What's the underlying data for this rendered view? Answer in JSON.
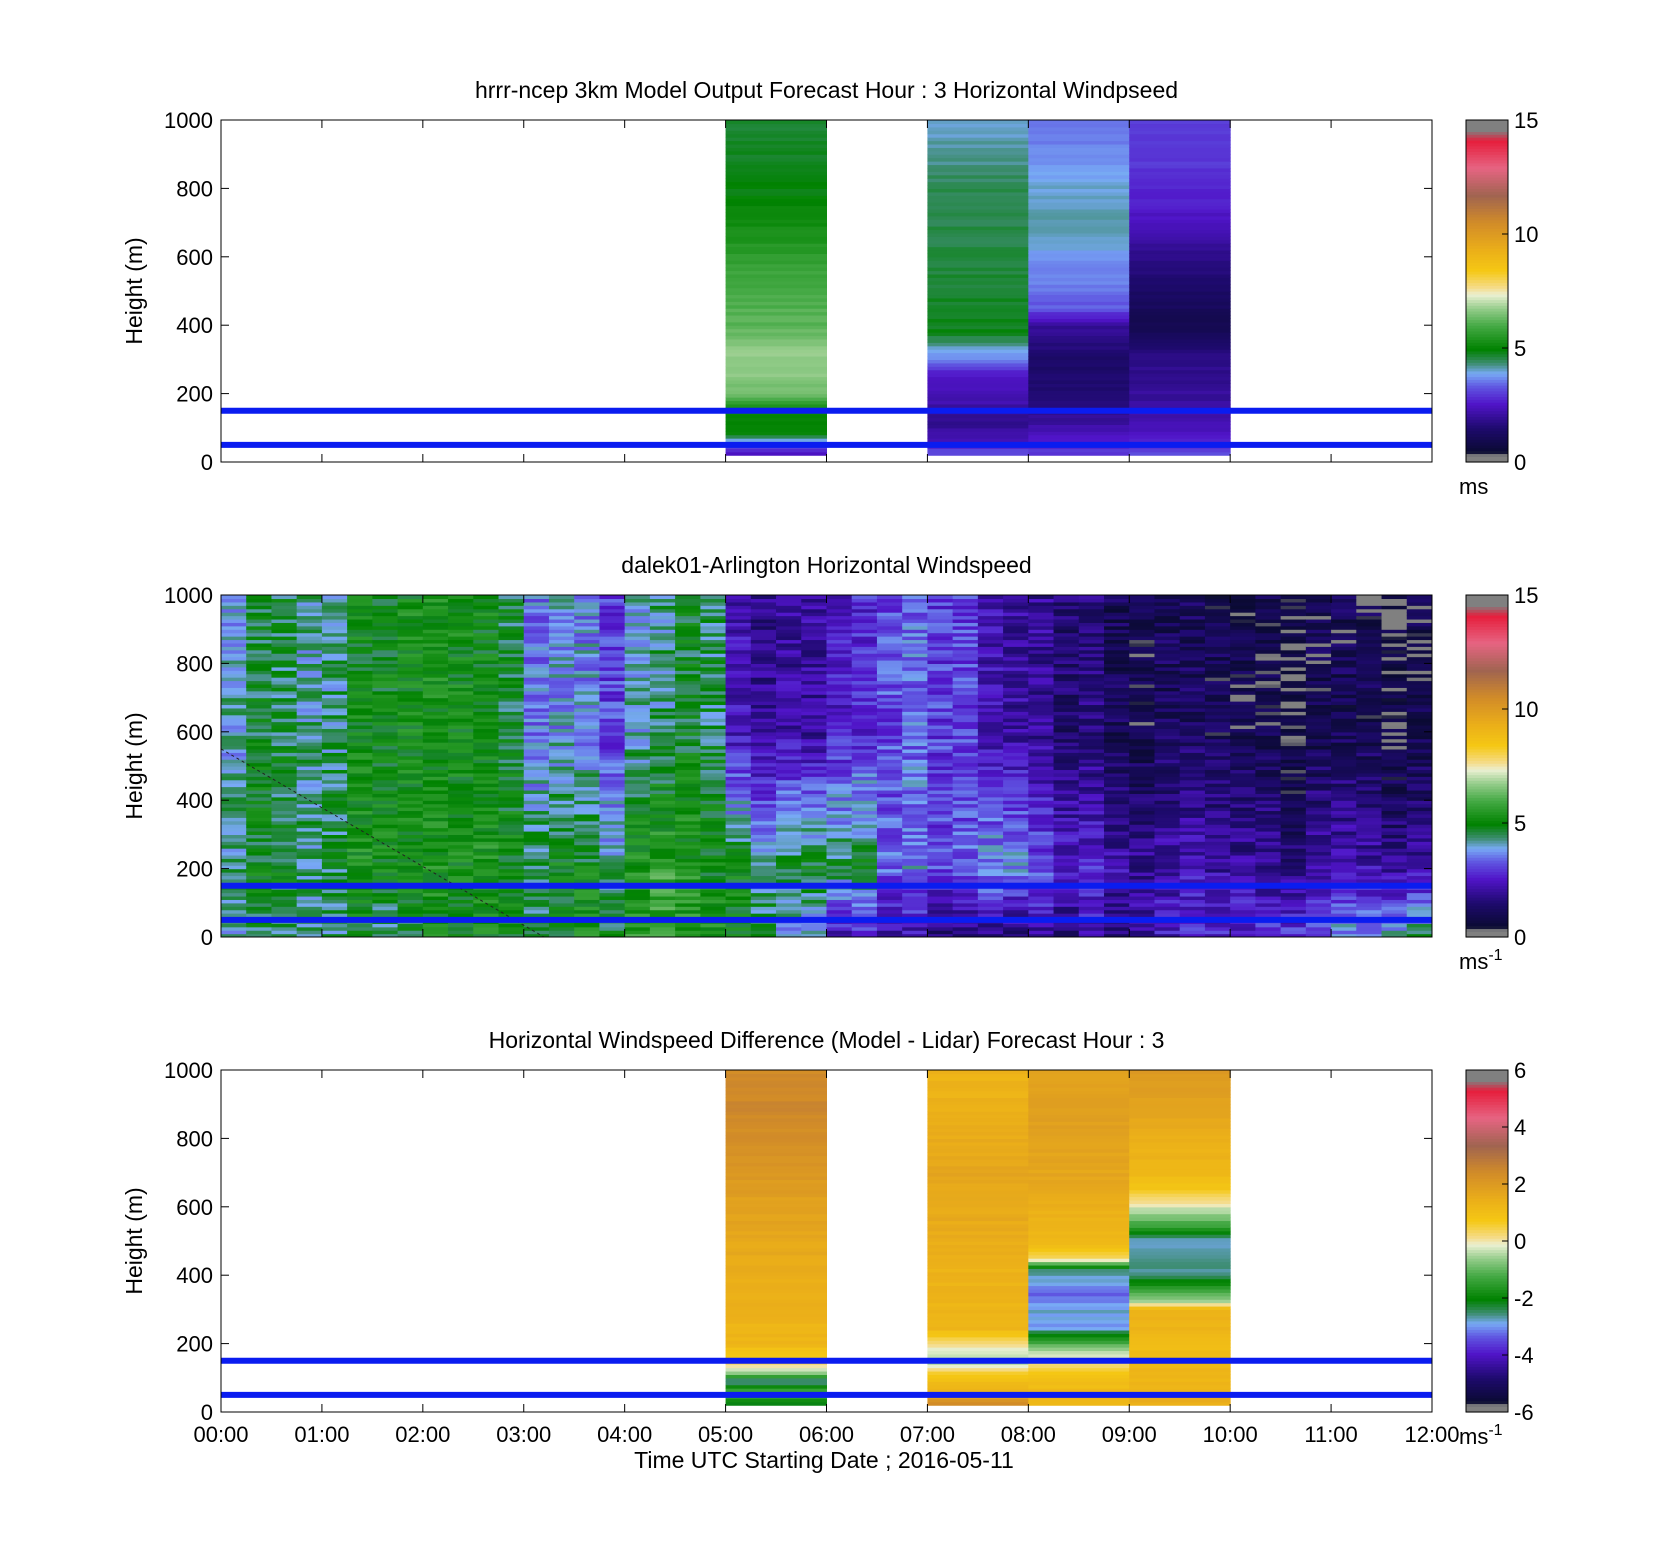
{
  "figure": {
    "xlabel": "Time UTC  Starting Date ; 2016-05-11",
    "x_ticks": [
      "00:00",
      "01:00",
      "02:00",
      "03:00",
      "04:00",
      "05:00",
      "06:00",
      "07:00",
      "08:00",
      "09:00",
      "10:00",
      "11:00",
      "12:00"
    ]
  },
  "chart_data": [
    {
      "type": "heatmap",
      "title": "hrrr-ncep 3km Model Output   Forecast Hour : 3 Horizontal Windpseed",
      "ylabel": "Height (m)",
      "xlim": [
        0,
        12
      ],
      "ylim": [
        0,
        1000
      ],
      "y_ticks": [
        0,
        200,
        400,
        600,
        800,
        1000
      ],
      "reference_lines_m": [
        50,
        150
      ],
      "colorbar": {
        "label": "ms",
        "label_sup": "",
        "ticks": [
          0,
          5,
          10,
          15
        ],
        "range": [
          0,
          15
        ]
      },
      "columns": [
        {
          "x_start": 5,
          "x_end": 6,
          "profile": [
            [
              25,
              2.6
            ],
            [
              60,
              3.5
            ],
            [
              80,
              5
            ],
            [
              150,
              5
            ],
            [
              200,
              6.4
            ],
            [
              300,
              6.8
            ],
            [
              400,
              6.2
            ],
            [
              550,
              5.9
            ],
            [
              650,
              5.4
            ],
            [
              750,
              5.0
            ],
            [
              850,
              4.8
            ],
            [
              1000,
              4.6
            ]
          ]
        },
        {
          "x_start": 7,
          "x_end": 8,
          "profile": [
            [
              25,
              3.2
            ],
            [
              60,
              2.5
            ],
            [
              120,
              1.8
            ],
            [
              200,
              2.4
            ],
            [
              260,
              2.6
            ],
            [
              300,
              3.6
            ],
            [
              380,
              4.8
            ],
            [
              600,
              4.6
            ],
            [
              800,
              4.5
            ],
            [
              900,
              4.2
            ],
            [
              1000,
              4.0
            ]
          ]
        },
        {
          "x_start": 8,
          "x_end": 9,
          "profile": [
            [
              25,
              3.0
            ],
            [
              60,
              2.6
            ],
            [
              120,
              2.0
            ],
            [
              200,
              1.5
            ],
            [
              300,
              1.4
            ],
            [
              400,
              2.0
            ],
            [
              450,
              3.3
            ],
            [
              500,
              3.5
            ],
            [
              600,
              3.8
            ],
            [
              700,
              4.2
            ],
            [
              800,
              4.0
            ],
            [
              900,
              3.7
            ],
            [
              1000,
              3.4
            ]
          ]
        },
        {
          "x_start": 9,
          "x_end": 10,
          "profile": [
            [
              25,
              3.2
            ],
            [
              60,
              2.8
            ],
            [
              120,
              2.2
            ],
            [
              200,
              2.0
            ],
            [
              300,
              1.8
            ],
            [
              400,
              1.0
            ],
            [
              500,
              1.3
            ],
            [
              600,
              1.8
            ],
            [
              700,
              2.4
            ],
            [
              800,
              2.8
            ],
            [
              900,
              3.0
            ],
            [
              1000,
              3.1
            ]
          ]
        }
      ]
    },
    {
      "type": "heatmap",
      "title": "dalek01-Arlington  Horizontal Windspeed",
      "ylabel": "Height (m)",
      "xlim": [
        0,
        12
      ],
      "ylim": [
        0,
        1000
      ],
      "y_ticks": [
        0,
        200,
        400,
        600,
        800,
        1000
      ],
      "reference_lines_m": [
        50,
        150
      ],
      "colorbar": {
        "label": "ms",
        "label_sup": "-1",
        "ticks": [
          0,
          5,
          10,
          15
        ],
        "range": [
          0,
          15
        ]
      },
      "approximate_hourly_speed_ms": {
        "hours": [
          0.25,
          0.75,
          1.25,
          1.75,
          2.25,
          2.75,
          3.25,
          3.75,
          4.25,
          4.75,
          5.25,
          5.75,
          6.25,
          6.75,
          7.25,
          7.75,
          8.25,
          8.75,
          9.25,
          9.75,
          10.25,
          10.75,
          11.25,
          11.75
        ],
        "low_levels_0_200m": [
          4.2,
          4.5,
          4.6,
          4.4,
          4.8,
          4.9,
          4.7,
          5.2,
          5.8,
          5.4,
          4.8,
          3.8,
          2.2,
          2.0,
          1.6,
          1.5,
          1.8,
          2.0,
          2.4,
          2.6,
          2.8,
          3.2,
          3.6,
          4.4
        ],
        "mid_levels_200_600m": [
          4.6,
          4.8,
          5.0,
          5.1,
          5.0,
          5.3,
          4.8,
          4.6,
          5.6,
          5.2,
          4.8,
          4.7,
          4.4,
          3.4,
          3.2,
          3.6,
          2.8,
          2.4,
          2.2,
          2.0,
          2.0,
          1.9,
          2.0,
          2.0
        ],
        "upper_levels_600_1000m": [
          4.4,
          4.6,
          4.7,
          5.0,
          4.9,
          4.9,
          3.6,
          3.4,
          4.2,
          4.6,
          2.2,
          2.0,
          2.4,
          3.2,
          3.0,
          2.0,
          1.6,
          1.3,
          1.1,
          0.9,
          0.8,
          0.7,
          0.8,
          0.8
        ]
      }
    },
    {
      "type": "heatmap",
      "title": "Horizontal Windspeed Difference (Model - Lidar) Forecast Hour : 3",
      "ylabel": "Height (m)",
      "xlim": [
        0,
        12
      ],
      "ylim": [
        0,
        1000
      ],
      "y_ticks": [
        0,
        200,
        400,
        600,
        800,
        1000
      ],
      "reference_lines_m": [
        50,
        150
      ],
      "colorbar": {
        "label": "ms",
        "label_sup": "-1",
        "ticks": [
          -6,
          -4,
          -2,
          0,
          2,
          4,
          6
        ],
        "range": [
          -6,
          6
        ]
      },
      "columns": [
        {
          "x_start": 5,
          "x_end": 6,
          "profile": [
            [
              25,
              -2.0
            ],
            [
              60,
              -1.2
            ],
            [
              90,
              -2.8
            ],
            [
              120,
              -0.3
            ],
            [
              150,
              0.4
            ],
            [
              200,
              1.2
            ],
            [
              400,
              1.5
            ],
            [
              600,
              1.8
            ],
            [
              800,
              2.3
            ],
            [
              900,
              2.5
            ],
            [
              1000,
              2.4
            ]
          ]
        },
        {
          "x_start": 7,
          "x_end": 8,
          "profile": [
            [
              25,
              2.4
            ],
            [
              60,
              1.5
            ],
            [
              120,
              0.4
            ],
            [
              150,
              -0.6
            ],
            [
              200,
              0.2
            ],
            [
              250,
              1.3
            ],
            [
              400,
              1.3
            ],
            [
              500,
              1.5
            ],
            [
              700,
              1.7
            ],
            [
              900,
              1.4
            ],
            [
              1000,
              1.3
            ]
          ]
        },
        {
          "x_start": 8,
          "x_end": 9,
          "profile": [
            [
              25,
              1.3
            ],
            [
              100,
              1.0
            ],
            [
              180,
              -0.4
            ],
            [
              250,
              -3.0
            ],
            [
              300,
              -2.8
            ],
            [
              350,
              -3.3
            ],
            [
              420,
              -2.4
            ],
            [
              450,
              0.3
            ],
            [
              500,
              1.2
            ],
            [
              600,
              1.4
            ],
            [
              700,
              1.7
            ],
            [
              900,
              1.9
            ],
            [
              1000,
              1.8
            ]
          ]
        },
        {
          "x_start": 9,
          "x_end": 10,
          "profile": [
            [
              25,
              1.5
            ],
            [
              100,
              1.2
            ],
            [
              200,
              1.1
            ],
            [
              300,
              1.4
            ],
            [
              320,
              -0.3
            ],
            [
              400,
              -2.6
            ],
            [
              500,
              -2.8
            ],
            [
              550,
              -1.2
            ],
            [
              600,
              -0.2
            ],
            [
              650,
              0.8
            ],
            [
              700,
              1.2
            ],
            [
              850,
              1.6
            ],
            [
              1000,
              2.1
            ]
          ]
        }
      ]
    }
  ]
}
